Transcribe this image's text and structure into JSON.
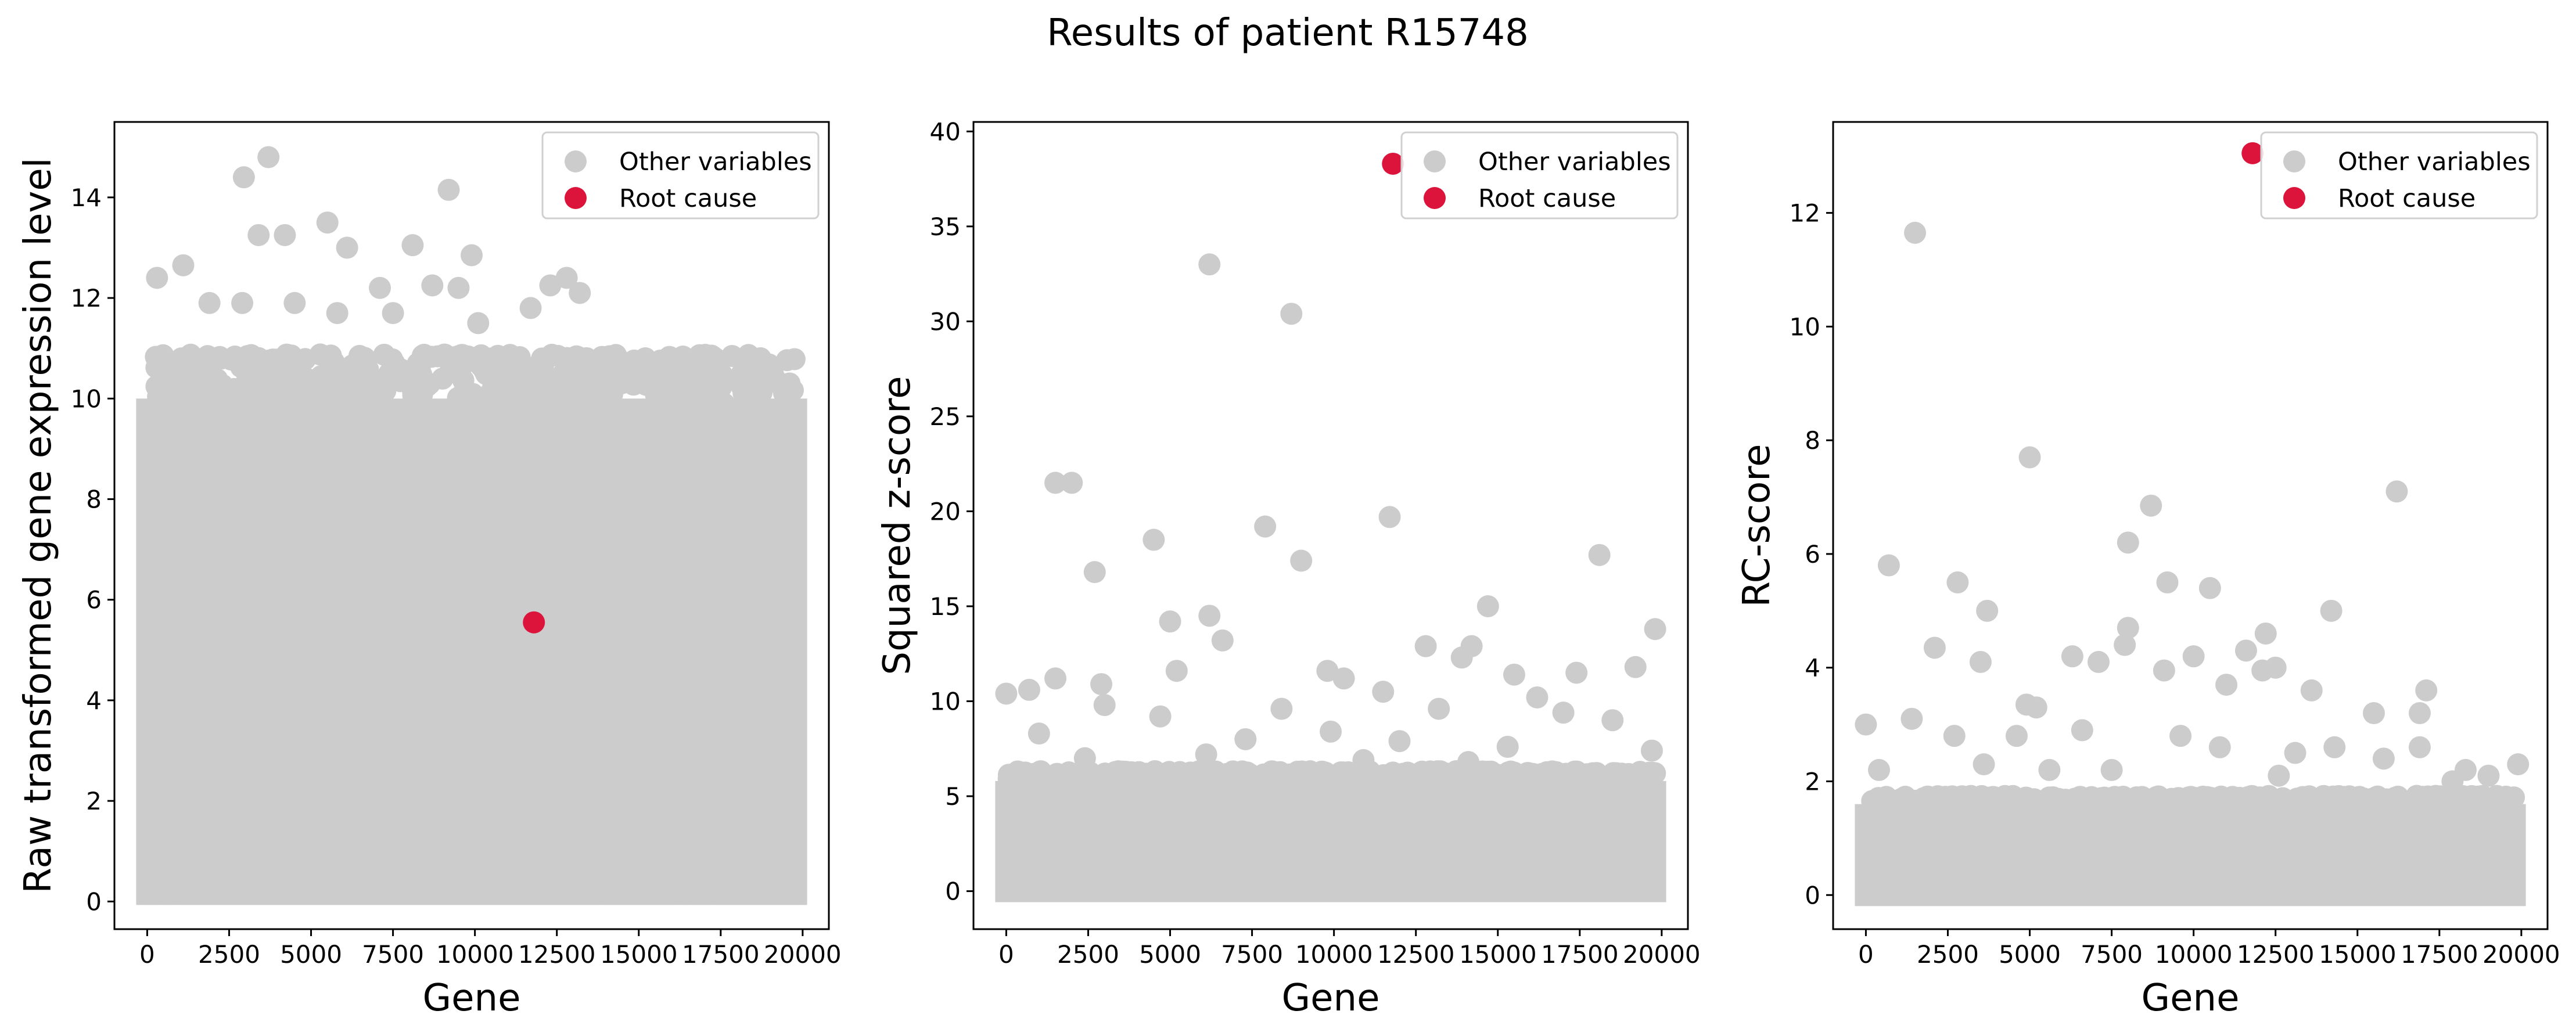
{
  "colors": {
    "other": "#cccccc",
    "root": "#dc143c",
    "axis": "#000000"
  },
  "chart_data": {
    "type": "scatter",
    "suptitle": "Results of patient R15748",
    "legend": {
      "placement": "upper right",
      "entries": [
        "Other variables",
        "Root cause"
      ]
    },
    "panels": [
      {
        "xlabel": "Gene",
        "ylabel": "Raw transformed gene expression level",
        "xlim": [
          -1000,
          20800
        ],
        "ylim": [
          -0.55,
          15.5
        ],
        "xticks": [
          0,
          2500,
          5000,
          7500,
          10000,
          12500,
          15000,
          17500,
          20000
        ],
        "yticks": [
          0,
          2,
          4,
          6,
          8,
          10,
          12,
          14
        ],
        "root_cause": {
          "x": 11800,
          "y": 5.55
        },
        "dense_band": {
          "y_min": 0.15,
          "y_max": 10.0
        },
        "floor_rows": [
          0.15,
          0.82
        ],
        "outliers": [
          [
            3700,
            14.8
          ],
          [
            2950,
            14.4
          ],
          [
            9200,
            14.15
          ],
          [
            3400,
            13.25
          ],
          [
            4200,
            13.25
          ],
          [
            5500,
            13.5
          ],
          [
            8100,
            13.05
          ],
          [
            6100,
            13.0
          ],
          [
            9900,
            12.85
          ],
          [
            1100,
            12.65
          ],
          [
            300,
            12.4
          ],
          [
            12800,
            12.4
          ],
          [
            12300,
            12.25
          ],
          [
            13200,
            12.1
          ],
          [
            7100,
            12.2
          ],
          [
            8700,
            12.25
          ],
          [
            9500,
            12.2
          ],
          [
            2900,
            11.9
          ],
          [
            1900,
            11.9
          ],
          [
            4500,
            11.9
          ],
          [
            5800,
            11.7
          ],
          [
            11700,
            11.8
          ],
          [
            7500,
            11.7
          ],
          [
            10100,
            11.5
          ],
          [
            15200,
            10.8
          ],
          [
            16800,
            10.6
          ],
          [
            17100,
            10.5
          ],
          [
            18800,
            10.3
          ],
          [
            19600,
            10.3
          ],
          [
            14500,
            10.4
          ],
          [
            15900,
            10.3
          ],
          [
            18200,
            10.1
          ],
          [
            13900,
            10.0
          ],
          [
            17600,
            9.9
          ],
          [
            16400,
            9.6
          ]
        ]
      },
      {
        "xlabel": "Gene",
        "ylabel": "Squared z-score",
        "xlim": [
          -1000,
          20800
        ],
        "ylim": [
          -2.0,
          40.5
        ],
        "xticks": [
          0,
          2500,
          5000,
          7500,
          10000,
          12500,
          15000,
          17500,
          20000
        ],
        "yticks": [
          0,
          5,
          10,
          15,
          20,
          25,
          30,
          35,
          40
        ],
        "root_cause": {
          "x": 11800,
          "y": 38.3
        },
        "dense_band": {
          "y_min": 0.0,
          "y_max": 5.8
        },
        "floor_rows": [],
        "outliers": [
          [
            6200,
            33.0
          ],
          [
            8700,
            30.4
          ],
          [
            1500,
            21.5
          ],
          [
            2000,
            21.5
          ],
          [
            7900,
            19.2
          ],
          [
            11700,
            19.7
          ],
          [
            4500,
            18.5
          ],
          [
            2700,
            16.8
          ],
          [
            9000,
            17.4
          ],
          [
            18100,
            17.7
          ],
          [
            14700,
            15.0
          ],
          [
            6200,
            14.5
          ],
          [
            5000,
            14.2
          ],
          [
            19800,
            13.8
          ],
          [
            6600,
            13.2
          ],
          [
            12800,
            12.9
          ],
          [
            14200,
            12.9
          ],
          [
            13900,
            12.3
          ],
          [
            5200,
            11.6
          ],
          [
            9800,
            11.6
          ],
          [
            15500,
            11.4
          ],
          [
            17400,
            11.5
          ],
          [
            10300,
            11.2
          ],
          [
            1500,
            11.2
          ],
          [
            0,
            10.4
          ],
          [
            700,
            10.6
          ],
          [
            2900,
            10.9
          ],
          [
            19200,
            11.8
          ],
          [
            11500,
            10.5
          ],
          [
            16200,
            10.2
          ],
          [
            8400,
            9.6
          ],
          [
            3000,
            9.8
          ],
          [
            4700,
            9.2
          ],
          [
            13200,
            9.6
          ],
          [
            17000,
            9.4
          ],
          [
            18500,
            9.0
          ],
          [
            9900,
            8.4
          ],
          [
            7300,
            8.0
          ],
          [
            12000,
            7.9
          ],
          [
            1000,
            8.3
          ],
          [
            15300,
            7.6
          ],
          [
            19700,
            7.4
          ],
          [
            6100,
            7.2
          ],
          [
            2400,
            7.0
          ],
          [
            10900,
            6.9
          ],
          [
            14100,
            6.8
          ]
        ]
      },
      {
        "xlabel": "Gene",
        "ylabel": "RC-score",
        "xlim": [
          -1000,
          20800
        ],
        "ylim": [
          -0.6,
          13.6
        ],
        "xticks": [
          0,
          2500,
          5000,
          7500,
          10000,
          12500,
          15000,
          17500,
          20000
        ],
        "yticks": [
          0,
          2,
          4,
          6,
          8,
          10,
          12
        ],
        "root_cause": {
          "x": 11800,
          "y": 13.05
        },
        "dense_band": {
          "y_min": 0.0,
          "y_max": 1.6
        },
        "floor_rows": [],
        "outliers": [
          [
            1500,
            11.65
          ],
          [
            5000,
            7.7
          ],
          [
            16200,
            7.1
          ],
          [
            8700,
            6.85
          ],
          [
            8000,
            6.2
          ],
          [
            700,
            5.8
          ],
          [
            2800,
            5.5
          ],
          [
            9200,
            5.5
          ],
          [
            10500,
            5.4
          ],
          [
            3700,
            5.0
          ],
          [
            14200,
            5.0
          ],
          [
            8000,
            4.7
          ],
          [
            12200,
            4.6
          ],
          [
            2100,
            4.35
          ],
          [
            7900,
            4.4
          ],
          [
            3500,
            4.1
          ],
          [
            12500,
            4.0
          ],
          [
            12100,
            3.95
          ],
          [
            9100,
            3.95
          ],
          [
            10000,
            4.2
          ],
          [
            7100,
            4.1
          ],
          [
            6300,
            4.2
          ],
          [
            11600,
            4.3
          ],
          [
            15500,
            3.2
          ],
          [
            17100,
            3.6
          ],
          [
            13600,
            3.6
          ],
          [
            16900,
            3.2
          ],
          [
            5200,
            3.3
          ],
          [
            4900,
            3.35
          ],
          [
            11000,
            3.7
          ],
          [
            0,
            3.0
          ],
          [
            1400,
            3.1
          ],
          [
            2700,
            2.8
          ],
          [
            4600,
            2.8
          ],
          [
            9600,
            2.8
          ],
          [
            14300,
            2.6
          ],
          [
            19900,
            2.3
          ],
          [
            18300,
            2.2
          ],
          [
            6600,
            2.9
          ],
          [
            10800,
            2.6
          ],
          [
            16900,
            2.6
          ],
          [
            400,
            2.2
          ],
          [
            13100,
            2.5
          ],
          [
            15800,
            2.4
          ],
          [
            3600,
            2.3
          ],
          [
            7500,
            2.2
          ],
          [
            12600,
            2.1
          ],
          [
            17900,
            2.0
          ],
          [
            19000,
            2.1
          ],
          [
            5600,
            2.2
          ]
        ]
      }
    ]
  }
}
